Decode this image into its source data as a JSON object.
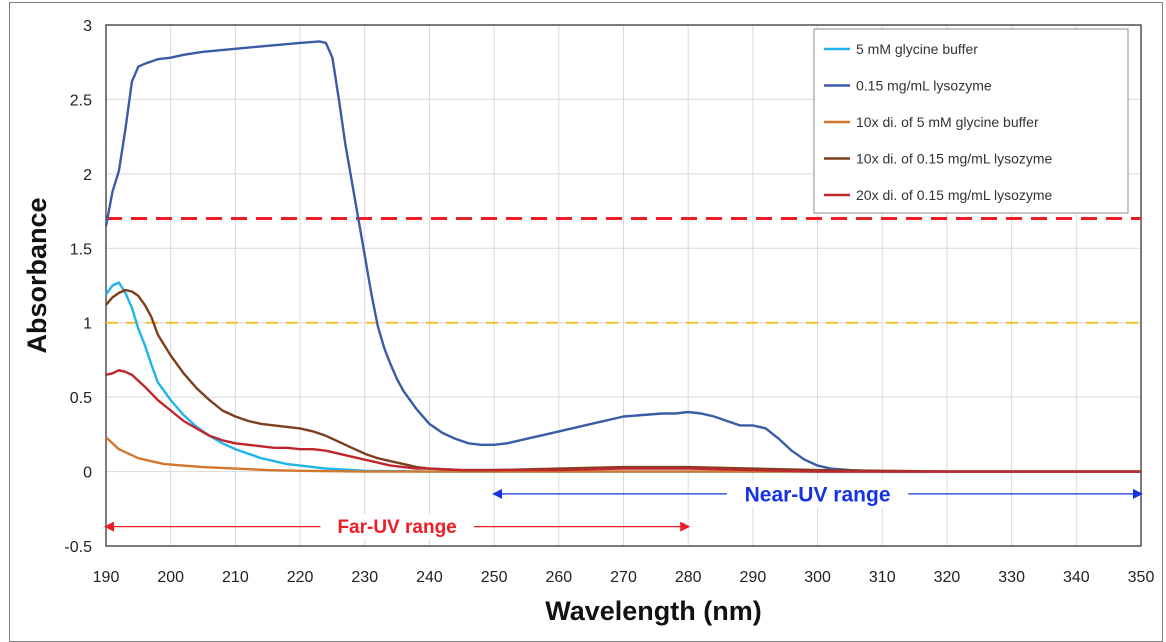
{
  "chart_data": {
    "type": "line",
    "xlabel": "Wavelength (nm)",
    "ylabel": "Absorbance",
    "xlim": [
      190,
      350
    ],
    "ylim": [
      -0.5,
      3
    ],
    "x_ticks": [
      "190",
      "200",
      "210",
      "220",
      "230",
      "240",
      "250",
      "260",
      "270",
      "280",
      "290",
      "300",
      "310",
      "320",
      "330",
      "340",
      "350"
    ],
    "y_ticks": [
      "-0.5",
      "0",
      "0.5",
      "1",
      "1.5",
      "2",
      "2.5",
      "3"
    ],
    "grid": true,
    "legend_position": "top-right",
    "series": [
      {
        "name": "5 mM glycine buffer",
        "color": "#1fb4ea",
        "points": [
          [
            190,
            1.19
          ],
          [
            191,
            1.25
          ],
          [
            192,
            1.27
          ],
          [
            193,
            1.2
          ],
          [
            194,
            1.1
          ],
          [
            195,
            0.96
          ],
          [
            196,
            0.85
          ],
          [
            197,
            0.72
          ],
          [
            198,
            0.6
          ],
          [
            200,
            0.48
          ],
          [
            202,
            0.38
          ],
          [
            204,
            0.3
          ],
          [
            206,
            0.24
          ],
          [
            208,
            0.19
          ],
          [
            210,
            0.15
          ],
          [
            212,
            0.12
          ],
          [
            214,
            0.09
          ],
          [
            216,
            0.07
          ],
          [
            218,
            0.05
          ],
          [
            220,
            0.04
          ],
          [
            222,
            0.03
          ],
          [
            224,
            0.02
          ],
          [
            226,
            0.015
          ],
          [
            228,
            0.01
          ],
          [
            230,
            0.005
          ],
          [
            240,
            0.0
          ],
          [
            260,
            0.0
          ],
          [
            280,
            0.0
          ],
          [
            300,
            0.0
          ],
          [
            320,
            0.0
          ],
          [
            340,
            0.0
          ],
          [
            350,
            0.0
          ]
        ]
      },
      {
        "name": "0.15 mg/mL lysozyme",
        "color": "#3a5ba6",
        "points": [
          [
            190,
            1.65
          ],
          [
            191,
            1.88
          ],
          [
            192,
            2.02
          ],
          [
            193,
            2.3
          ],
          [
            194,
            2.62
          ],
          [
            195,
            2.72
          ],
          [
            196,
            2.74
          ],
          [
            198,
            2.77
          ],
          [
            200,
            2.78
          ],
          [
            202,
            2.8
          ],
          [
            205,
            2.82
          ],
          [
            210,
            2.84
          ],
          [
            215,
            2.86
          ],
          [
            220,
            2.88
          ],
          [
            223,
            2.89
          ],
          [
            224,
            2.88
          ],
          [
            225,
            2.78
          ],
          [
            226,
            2.5
          ],
          [
            227,
            2.2
          ],
          [
            228,
            1.95
          ],
          [
            229,
            1.7
          ],
          [
            230,
            1.45
          ],
          [
            231,
            1.2
          ],
          [
            232,
            0.98
          ],
          [
            233,
            0.83
          ],
          [
            234,
            0.72
          ],
          [
            235,
            0.62
          ],
          [
            236,
            0.54
          ],
          [
            238,
            0.42
          ],
          [
            240,
            0.32
          ],
          [
            242,
            0.26
          ],
          [
            244,
            0.22
          ],
          [
            246,
            0.19
          ],
          [
            248,
            0.18
          ],
          [
            250,
            0.18
          ],
          [
            252,
            0.19
          ],
          [
            255,
            0.22
          ],
          [
            258,
            0.25
          ],
          [
            260,
            0.27
          ],
          [
            263,
            0.3
          ],
          [
            266,
            0.33
          ],
          [
            268,
            0.35
          ],
          [
            270,
            0.37
          ],
          [
            273,
            0.38
          ],
          [
            276,
            0.39
          ],
          [
            278,
            0.39
          ],
          [
            280,
            0.4
          ],
          [
            282,
            0.39
          ],
          [
            284,
            0.37
          ],
          [
            286,
            0.34
          ],
          [
            288,
            0.31
          ],
          [
            290,
            0.31
          ],
          [
            292,
            0.29
          ],
          [
            294,
            0.22
          ],
          [
            296,
            0.14
          ],
          [
            298,
            0.08
          ],
          [
            300,
            0.04
          ],
          [
            302,
            0.02
          ],
          [
            305,
            0.01
          ],
          [
            310,
            0.0
          ],
          [
            320,
            0.0
          ],
          [
            330,
            0.0
          ],
          [
            340,
            0.0
          ],
          [
            350,
            0.0
          ]
        ]
      },
      {
        "name": "10x di. of 5 mM glycine buffer",
        "color": "#d2772e",
        "points": [
          [
            190,
            0.23
          ],
          [
            191,
            0.19
          ],
          [
            192,
            0.15
          ],
          [
            193,
            0.13
          ],
          [
            194,
            0.11
          ],
          [
            195,
            0.09
          ],
          [
            197,
            0.07
          ],
          [
            199,
            0.05
          ],
          [
            202,
            0.04
          ],
          [
            205,
            0.03
          ],
          [
            210,
            0.02
          ],
          [
            215,
            0.01
          ],
          [
            220,
            0.005
          ],
          [
            230,
            0.0
          ],
          [
            260,
            0.0
          ],
          [
            290,
            0.0
          ],
          [
            320,
            0.0
          ],
          [
            350,
            0.0
          ]
        ]
      },
      {
        "name": "10x di. of 0.15 mg/mL lysozyme",
        "color": "#7b3f1c",
        "points": [
          [
            190,
            1.12
          ],
          [
            191,
            1.17
          ],
          [
            192,
            1.2
          ],
          [
            193,
            1.22
          ],
          [
            194,
            1.21
          ],
          [
            195,
            1.18
          ],
          [
            196,
            1.12
          ],
          [
            197,
            1.04
          ],
          [
            198,
            0.92
          ],
          [
            200,
            0.78
          ],
          [
            202,
            0.66
          ],
          [
            204,
            0.56
          ],
          [
            206,
            0.48
          ],
          [
            208,
            0.41
          ],
          [
            210,
            0.37
          ],
          [
            212,
            0.34
          ],
          [
            214,
            0.32
          ],
          [
            216,
            0.31
          ],
          [
            218,
            0.3
          ],
          [
            220,
            0.29
          ],
          [
            222,
            0.27
          ],
          [
            224,
            0.24
          ],
          [
            226,
            0.2
          ],
          [
            228,
            0.16
          ],
          [
            230,
            0.12
          ],
          [
            232,
            0.09
          ],
          [
            234,
            0.07
          ],
          [
            236,
            0.05
          ],
          [
            238,
            0.03
          ],
          [
            240,
            0.02
          ],
          [
            245,
            0.01
          ],
          [
            250,
            0.01
          ],
          [
            260,
            0.02
          ],
          [
            270,
            0.03
          ],
          [
            280,
            0.03
          ],
          [
            290,
            0.02
          ],
          [
            300,
            0.01
          ],
          [
            310,
            0.005
          ],
          [
            320,
            0.0
          ],
          [
            330,
            0.0
          ],
          [
            340,
            0.0
          ],
          [
            350,
            0.0
          ]
        ]
      },
      {
        "name": "20x di. of 0.15 mg/mL lysozyme",
        "color": "#c0262e",
        "points": [
          [
            190,
            0.65
          ],
          [
            191,
            0.66
          ],
          [
            192,
            0.68
          ],
          [
            193,
            0.67
          ],
          [
            194,
            0.65
          ],
          [
            195,
            0.61
          ],
          [
            196,
            0.57
          ],
          [
            198,
            0.48
          ],
          [
            200,
            0.41
          ],
          [
            202,
            0.34
          ],
          [
            204,
            0.29
          ],
          [
            206,
            0.24
          ],
          [
            208,
            0.21
          ],
          [
            210,
            0.19
          ],
          [
            212,
            0.18
          ],
          [
            214,
            0.17
          ],
          [
            216,
            0.16
          ],
          [
            218,
            0.16
          ],
          [
            220,
            0.15
          ],
          [
            222,
            0.15
          ],
          [
            224,
            0.14
          ],
          [
            226,
            0.12
          ],
          [
            228,
            0.1
          ],
          [
            230,
            0.08
          ],
          [
            232,
            0.06
          ],
          [
            234,
            0.04
          ],
          [
            236,
            0.03
          ],
          [
            238,
            0.02
          ],
          [
            240,
            0.02
          ],
          [
            245,
            0.01
          ],
          [
            250,
            0.01
          ],
          [
            260,
            0.01
          ],
          [
            270,
            0.02
          ],
          [
            280,
            0.02
          ],
          [
            290,
            0.01
          ],
          [
            300,
            0.0
          ],
          [
            310,
            0.0
          ],
          [
            320,
            0.0
          ],
          [
            330,
            0.0
          ],
          [
            340,
            0.0
          ],
          [
            350,
            0.0
          ]
        ]
      }
    ],
    "reference_lines": [
      {
        "y": 1.7,
        "color": "#ee1c25",
        "style": "dashed"
      },
      {
        "y": 1.0,
        "color": "#f5c02c",
        "style": "dashed"
      }
    ],
    "annotations": [
      {
        "text": "Far-UV range",
        "color": "#ee1c25",
        "x_start": 190,
        "x_end": 280,
        "y": -0.37
      },
      {
        "text": "Near-UV range",
        "color": "#1533e0",
        "x_start": 250,
        "x_end": 350,
        "y": -0.15
      }
    ]
  }
}
